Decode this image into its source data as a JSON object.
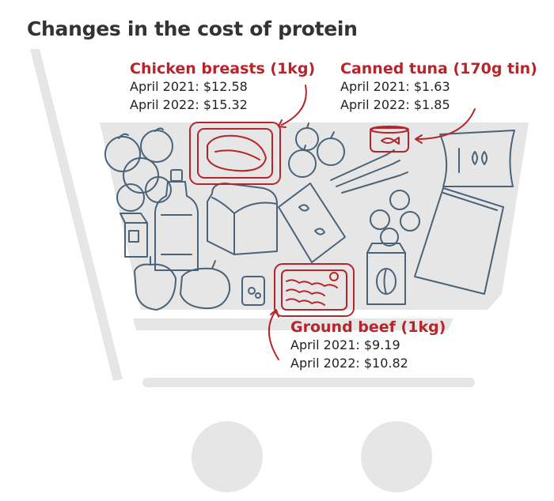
{
  "title": "Changes in the cost of protein",
  "colors": {
    "accent": "#b5252b",
    "cart": "#e6e6e6",
    "icon_stroke": "#4a6378"
  },
  "callouts": {
    "chicken": {
      "name": "Chicken breasts (1kg)",
      "line1": "April 2021: $12.58",
      "line2": "April 2022: $15.32"
    },
    "tuna": {
      "name": "Canned tuna (170g tin)",
      "line1": "April 2021: $1.63",
      "line2": "April 2022: $1.85"
    },
    "beef": {
      "name": "Ground beef (1kg)",
      "line1": "April 2021: $9.19",
      "line2": "April 2022: $10.82"
    }
  },
  "icons": [
    "oranges-icon",
    "milk-carton-icon",
    "oil-bottle-icon",
    "bread-loaf-icon",
    "chicken-breast-icon",
    "onions-icon",
    "pasta-bag-icon",
    "ground-beef-icon",
    "tuna-can-icon",
    "carrots-icon",
    "flour-bag-icon",
    "apples-icon",
    "coffee-bag-icon",
    "cereal-box-icon",
    "peppers-icon",
    "soup-can-icon"
  ]
}
